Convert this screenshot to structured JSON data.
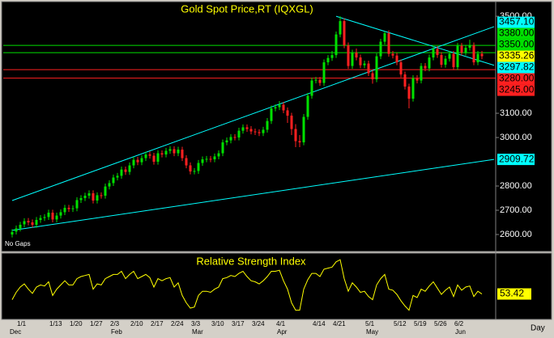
{
  "chart_data": [
    {
      "type": "candlestick",
      "title": "Gold Spot Price,RT  (IQXGL)",
      "note": "No Gaps",
      "x_label": "Day",
      "categories": [
        null,
        null,
        "1/1",
        null,
        null,
        null,
        null,
        null,
        null,
        null,
        "1/13",
        null,
        null,
        null,
        null,
        "1/20",
        null,
        null,
        null,
        null,
        "1/27",
        null,
        null,
        null,
        null,
        "2/3",
        null,
        null,
        null,
        null,
        "2/10",
        null,
        null,
        null,
        null,
        "2/17",
        null,
        null,
        null,
        null,
        "2/24",
        null,
        null,
        null,
        null,
        "3/3",
        null,
        null,
        null,
        null,
        "3/10",
        null,
        null,
        null,
        null,
        "3/17",
        null,
        null,
        null,
        null,
        "3/24",
        null,
        null,
        null,
        null,
        null,
        "4/1",
        null,
        null,
        null,
        null,
        null,
        null,
        null,
        null,
        "4/14",
        null,
        null,
        null,
        null,
        "4/21",
        null,
        null,
        null,
        null,
        null,
        null,
        null,
        "5/1",
        null,
        null,
        null,
        null,
        null,
        null,
        "5/12",
        null,
        null,
        null,
        null,
        "5/19",
        null,
        null,
        null,
        null,
        "5/26",
        null,
        null,
        null,
        null,
        "6/2",
        null,
        null,
        null,
        null,
        null,
        null
      ],
      "months": [
        "Dec",
        null,
        null,
        null,
        null,
        null,
        null,
        null,
        null,
        null,
        null,
        null,
        null,
        null,
        null,
        null,
        null,
        null,
        null,
        null,
        null,
        null,
        null,
        null,
        null,
        "Feb",
        null,
        null,
        null,
        null,
        null,
        null,
        null,
        null,
        null,
        null,
        null,
        null,
        null,
        null,
        null,
        null,
        null,
        null,
        null,
        "Mar",
        null,
        null,
        null,
        null,
        null,
        null,
        null,
        null,
        null,
        null,
        null,
        null,
        null,
        null,
        null,
        null,
        null,
        null,
        null,
        null,
        "Apr",
        null,
        null,
        null,
        null,
        null,
        null,
        null,
        null,
        null,
        null,
        null,
        null,
        null,
        null,
        null,
        null,
        null,
        null,
        null,
        null,
        null,
        "May",
        null,
        null,
        null,
        null,
        null,
        null,
        null,
        null,
        null,
        null,
        null,
        null,
        null,
        null,
        null,
        null,
        null,
        null,
        null,
        null,
        null,
        "Jun",
        null,
        null,
        null,
        null,
        null,
        null
      ],
      "open": [
        2600,
        2612,
        2625,
        2642,
        2656,
        2650,
        2640,
        2660,
        2668,
        2672,
        2690,
        2662,
        2678,
        2692,
        2710,
        2705,
        2708,
        2742,
        2750,
        2760,
        2770,
        2740,
        2762,
        2760,
        2798,
        2812,
        2835,
        2842,
        2868,
        2858,
        2885,
        2908,
        2898,
        2915,
        2930,
        2925,
        2900,
        2935,
        2930,
        2945,
        2952,
        2935,
        2950,
        2915,
        2885,
        2860,
        2862,
        2895,
        2910,
        2912,
        2910,
        2922,
        2935,
        2980,
        2988,
        3002,
        3000,
        3028,
        3042,
        3035,
        3025,
        3022,
        3018,
        3032,
        3068,
        3120,
        3125,
        3135,
        3112,
        3090,
        3035,
        2985,
        2980,
        3085,
        3172,
        3235,
        3238,
        3225,
        3310,
        3328,
        3340,
        3425,
        3480,
        3380,
        3295,
        3350,
        3330,
        3298,
        3305,
        3265,
        3240,
        3335,
        3395,
        3430,
        3345,
        3338,
        3310,
        3260,
        3210,
        3160,
        3245,
        3235,
        3295,
        3285,
        3330,
        3365,
        3340,
        3300,
        3325,
        3345,
        3290,
        3378,
        3350,
        3370,
        3380,
        3310,
        3345
      ],
      "high": [
        2622,
        2637,
        2652,
        2667,
        2668,
        2662,
        2672,
        2680,
        2684,
        2702,
        2702,
        2690,
        2704,
        2722,
        2722,
        2720,
        2754,
        2762,
        2772,
        2782,
        2782,
        2774,
        2774,
        2810,
        2824,
        2847,
        2854,
        2880,
        2880,
        2897,
        2920,
        2920,
        2927,
        2942,
        2942,
        2937,
        2947,
        2947,
        2957,
        2964,
        2964,
        2962,
        2962,
        2927,
        2897,
        2874,
        2907,
        2922,
        2924,
        2924,
        2934,
        2947,
        2992,
        3000,
        3014,
        3014,
        3040,
        3054,
        3054,
        3047,
        3037,
        3034,
        3044,
        3080,
        3132,
        3137,
        3150,
        3147,
        3124,
        3102,
        3055,
        3010,
        3097,
        3184,
        3247,
        3250,
        3250,
        3322,
        3340,
        3357,
        3437,
        3500,
        3492,
        3392,
        3362,
        3367,
        3342,
        3317,
        3317,
        3277,
        3347,
        3407,
        3438,
        3442,
        3357,
        3350,
        3322,
        3272,
        3222,
        3257,
        3257,
        3307,
        3307,
        3342,
        3377,
        3377,
        3352,
        3337,
        3357,
        3357,
        3390,
        3390,
        3382,
        3403,
        3392,
        3357,
        3357
      ],
      "low": [
        2588,
        2600,
        2613,
        2630,
        2638,
        2628,
        2628,
        2648,
        2656,
        2660,
        2650,
        2650,
        2666,
        2680,
        2693,
        2693,
        2696,
        2730,
        2738,
        2748,
        2728,
        2728,
        2748,
        2748,
        2786,
        2800,
        2823,
        2830,
        2846,
        2846,
        2873,
        2886,
        2886,
        2903,
        2913,
        2888,
        2888,
        2918,
        2918,
        2933,
        2923,
        2923,
        2903,
        2873,
        2848,
        2848,
        2850,
        2883,
        2898,
        2898,
        2898,
        2910,
        2923,
        2968,
        2976,
        2988,
        2988,
        3016,
        3023,
        3013,
        3010,
        3006,
        3006,
        3020,
        3056,
        3108,
        3113,
        3100,
        3060,
        3010,
        2960,
        2960,
        2968,
        3073,
        3160,
        3223,
        3213,
        3213,
        3298,
        3316,
        3328,
        3413,
        3368,
        3283,
        3283,
        3318,
        3286,
        3286,
        3253,
        3222,
        3228,
        3323,
        3383,
        3333,
        3326,
        3298,
        3248,
        3198,
        3120,
        3148,
        3223,
        3223,
        3273,
        3273,
        3318,
        3328,
        3288,
        3288,
        3313,
        3278,
        3278,
        3338,
        3338,
        3358,
        3298,
        3298,
        3323
      ],
      "close": [
        2610,
        2625,
        2640,
        2655,
        2650,
        2640,
        2660,
        2668,
        2672,
        2690,
        2662,
        2678,
        2692,
        2710,
        2705,
        2708,
        2742,
        2750,
        2760,
        2770,
        2740,
        2762,
        2760,
        2798,
        2812,
        2835,
        2842,
        2868,
        2858,
        2885,
        2908,
        2898,
        2915,
        2930,
        2925,
        2900,
        2935,
        2930,
        2945,
        2952,
        2935,
        2950,
        2915,
        2885,
        2860,
        2862,
        2895,
        2910,
        2912,
        2910,
        2922,
        2935,
        2980,
        2988,
        3002,
        3000,
        3028,
        3042,
        3035,
        3025,
        3022,
        3018,
        3032,
        3068,
        3120,
        3125,
        3135,
        3112,
        3090,
        3035,
        2985,
        2980,
        3085,
        3172,
        3235,
        3238,
        3225,
        3310,
        3328,
        3340,
        3425,
        3480,
        3380,
        3295,
        3350,
        3330,
        3298,
        3305,
        3265,
        3240,
        3335,
        3395,
        3430,
        3345,
        3338,
        3310,
        3260,
        3210,
        3160,
        3245,
        3235,
        3295,
        3285,
        3330,
        3365,
        3340,
        3300,
        3325,
        3345,
        3290,
        3378,
        3350,
        3370,
        3380,
        3310,
        3345,
        3335.26
      ],
      "up_color": "#00e000",
      "down_color": "#ff2020",
      "last_color": "#ffff00",
      "ylim": [
        2540,
        3557
      ],
      "yticks": [
        {
          "value": 3500,
          "label": "3500.00"
        },
        {
          "value": 3100,
          "label": "3100.00"
        },
        {
          "value": 3000,
          "label": "3000.00"
        },
        {
          "value": 2800,
          "label": "2800.00"
        },
        {
          "value": 2700,
          "label": "2700.00"
        },
        {
          "value": 2600,
          "label": "2600.00"
        }
      ],
      "levels": [
        {
          "value": 3380,
          "label": "3380.00",
          "color": "#00e000"
        },
        {
          "value": 3350,
          "label": "3350.00",
          "color": "#00e000"
        },
        {
          "value": 3280,
          "label": "3280.00",
          "color": "#ff2020"
        },
        {
          "value": 3245,
          "label": "3245.00",
          "color": "#ff2020"
        }
      ],
      "trend_color": "#00ffff",
      "trendlines": [
        {
          "start_x": 0,
          "start_value": 2740,
          "end_x": 119,
          "end": {
            "value": 3457.1,
            "label": "3457.10"
          }
        },
        {
          "start_x": 0,
          "start_value": 2617,
          "end_x": 119,
          "end": {
            "value": 2909.72,
            "label": "2909.72"
          }
        },
        {
          "start_x": 80,
          "start_value": 3500,
          "end_x": 119,
          "end": {
            "value": 3297.82,
            "label": "3297.82"
          }
        }
      ]
    },
    {
      "type": "line",
      "title": "Relative Strength Index",
      "color": "#ffff00",
      "ylim": [
        30,
        90
      ],
      "values": [
        48,
        55,
        60,
        63,
        58,
        54,
        60,
        62,
        61,
        65,
        52,
        58,
        62,
        66,
        62,
        62,
        68,
        70,
        71,
        72,
        58,
        63,
        62,
        68,
        70,
        72,
        72,
        75,
        68,
        72,
        75,
        68,
        70,
        72,
        69,
        60,
        68,
        66,
        68,
        69,
        60,
        64,
        52,
        45,
        40,
        41,
        52,
        56,
        56,
        55,
        58,
        60,
        68,
        69,
        71,
        70,
        73,
        75,
        70,
        66,
        65,
        63,
        66,
        70,
        75,
        75,
        76,
        66,
        58,
        45,
        38,
        38,
        58,
        67,
        73,
        73,
        70,
        77,
        78,
        79,
        84,
        86,
        68,
        56,
        64,
        60,
        55,
        56,
        51,
        48,
        62,
        68,
        72,
        58,
        57,
        53,
        47,
        42,
        38,
        52,
        50,
        58,
        56,
        61,
        65,
        59,
        53,
        57,
        60,
        51,
        62,
        57,
        60,
        61,
        51,
        56,
        53.42
      ]
    }
  ]
}
